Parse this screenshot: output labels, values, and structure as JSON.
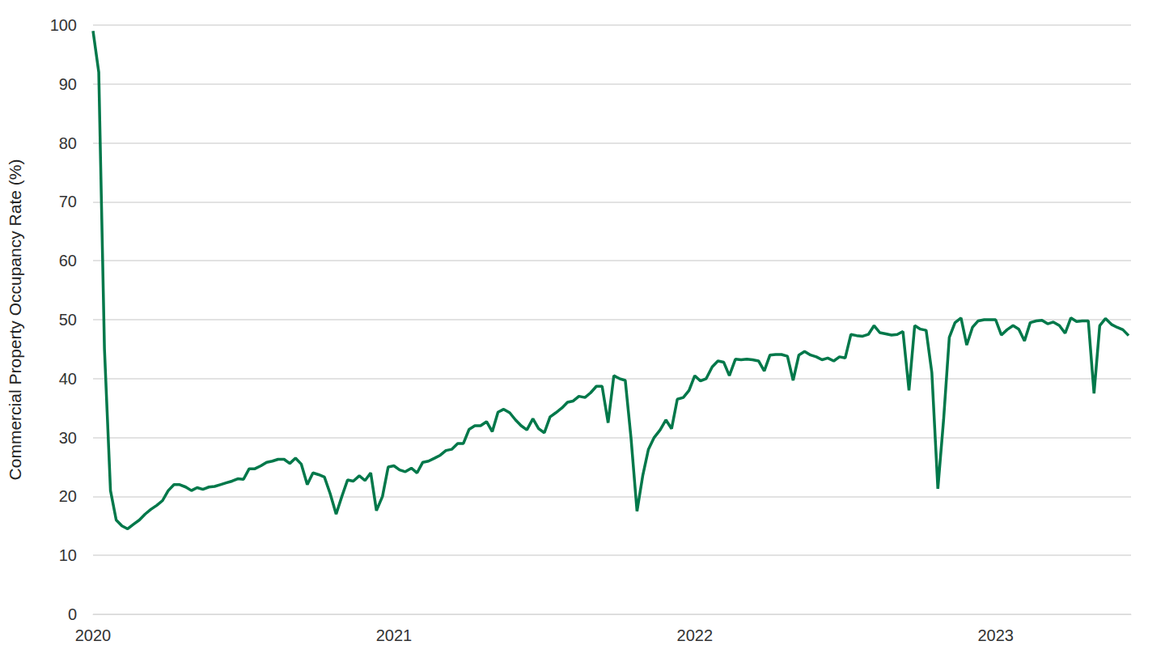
{
  "chart_data": {
    "type": "line",
    "y_label": "Commercial Property Occupancy Rate (%)",
    "color": "#00784a",
    "grid": true,
    "xlim": [
      2020,
      2023.45
    ],
    "xticks": [
      2020,
      2021,
      2022,
      2023
    ],
    "ylim": [
      0,
      100
    ],
    "yticks": [
      0,
      10,
      20,
      30,
      40,
      50,
      60,
      70,
      80,
      90,
      100
    ],
    "x": [
      2020,
      2020.019,
      2020.038,
      2020.058,
      2020.077,
      2020.096,
      2020.115,
      2020.135,
      2020.154,
      2020.173,
      2020.192,
      2020.212,
      2020.231,
      2020.25,
      2020.269,
      2020.288,
      2020.308,
      2020.327,
      2020.346,
      2020.365,
      2020.385,
      2020.404,
      2020.423,
      2020.442,
      2020.462,
      2020.481,
      2020.5,
      2020.519,
      2020.538,
      2020.558,
      2020.577,
      2020.596,
      2020.615,
      2020.635,
      2020.654,
      2020.673,
      2020.692,
      2020.712,
      2020.731,
      2020.75,
      2020.769,
      2020.788,
      2020.808,
      2020.827,
      2020.846,
      2020.865,
      2020.885,
      2020.904,
      2020.923,
      2020.942,
      2020.962,
      2020.981,
      2021,
      2021.019,
      2021.038,
      2021.058,
      2021.077,
      2021.096,
      2021.115,
      2021.135,
      2021.154,
      2021.173,
      2021.192,
      2021.212,
      2021.231,
      2021.25,
      2021.269,
      2021.288,
      2021.308,
      2021.327,
      2021.346,
      2021.365,
      2021.385,
      2021.404,
      2021.423,
      2021.442,
      2021.462,
      2021.481,
      2021.5,
      2021.519,
      2021.538,
      2021.558,
      2021.577,
      2021.596,
      2021.615,
      2021.635,
      2021.654,
      2021.673,
      2021.692,
      2021.712,
      2021.731,
      2021.75,
      2021.769,
      2021.788,
      2021.808,
      2021.827,
      2021.846,
      2021.865,
      2021.885,
      2021.904,
      2021.923,
      2021.942,
      2021.962,
      2021.981,
      2022,
      2022.019,
      2022.038,
      2022.058,
      2022.077,
      2022.096,
      2022.115,
      2022.135,
      2022.154,
      2022.173,
      2022.192,
      2022.212,
      2022.231,
      2022.25,
      2022.269,
      2022.288,
      2022.308,
      2022.327,
      2022.346,
      2022.365,
      2022.385,
      2022.404,
      2022.423,
      2022.442,
      2022.462,
      2022.481,
      2022.5,
      2022.519,
      2022.538,
      2022.558,
      2022.577,
      2022.596,
      2022.615,
      2022.635,
      2022.654,
      2022.673,
      2022.692,
      2022.712,
      2022.731,
      2022.75,
      2022.769,
      2022.788,
      2022.808,
      2022.827,
      2022.846,
      2022.865,
      2022.885,
      2022.904,
      2022.923,
      2022.942,
      2022.962,
      2022.981,
      2023,
      2023.019,
      2023.038,
      2023.058,
      2023.077,
      2023.096,
      2023.115,
      2023.135,
      2023.154,
      2023.173,
      2023.192,
      2023.212,
      2023.231,
      2023.25,
      2023.269,
      2023.288,
      2023.308,
      2023.327,
      2023.346,
      2023.365,
      2023.385,
      2023.404,
      2023.423,
      2023.442
    ],
    "values": [
      99,
      92,
      45,
      21,
      16,
      15,
      14.5,
      15.3,
      16,
      17,
      17.8,
      18.5,
      19.3,
      21,
      22,
      22,
      21.6,
      21,
      21.5,
      21.2,
      21.6,
      21.7,
      22,
      22.3,
      22.6,
      23,
      22.9,
      24.7,
      24.7,
      25.2,
      25.8,
      26,
      26.3,
      26.3,
      25.6,
      26.5,
      25.5,
      22,
      24,
      23.7,
      23.3,
      20.5,
      17,
      20,
      22.8,
      22.6,
      23.5,
      22.7,
      24,
      17.6,
      20,
      25,
      25.2,
      24.5,
      24.2,
      24.8,
      24,
      25.8,
      26,
      26.5,
      27,
      27.8,
      28,
      29,
      29,
      31.4,
      32,
      32,
      32.7,
      31,
      34.3,
      34.8,
      34.2,
      33,
      32,
      31.3,
      33.2,
      31.5,
      30.8,
      33.5,
      34.2,
      35,
      36,
      36.2,
      37,
      36.8,
      37.6,
      38.7,
      38.7,
      32.5,
      40.5,
      40,
      39.7,
      30,
      17.5,
      23.5,
      28,
      30,
      31.3,
      33,
      31.5,
      36.5,
      36.8,
      38,
      40.5,
      39.6,
      40,
      42,
      43,
      42.8,
      40.5,
      43.3,
      43.2,
      43.3,
      43.2,
      43,
      41.3,
      44,
      44.1,
      44.1,
      43.8,
      39.7,
      44,
      44.6,
      44,
      43.7,
      43.2,
      43.5,
      43,
      43.7,
      43.5,
      47.5,
      47.3,
      47.2,
      47.5,
      49,
      47.8,
      47.6,
      47.4,
      47.5,
      48,
      38,
      49,
      48.4,
      48.2,
      41,
      21.3,
      33,
      47,
      49.5,
      50.3,
      45.7,
      48.7,
      49.8,
      50,
      50,
      50,
      47.4,
      48.3,
      49,
      48.4,
      46.4,
      49.5,
      49.8,
      49.9,
      49.3,
      49.6,
      49,
      47.7,
      50.3,
      49.7,
      49.8,
      49.8,
      37.5,
      49,
      50.2,
      49.2,
      48.7,
      48.3,
      47.3
    ]
  }
}
